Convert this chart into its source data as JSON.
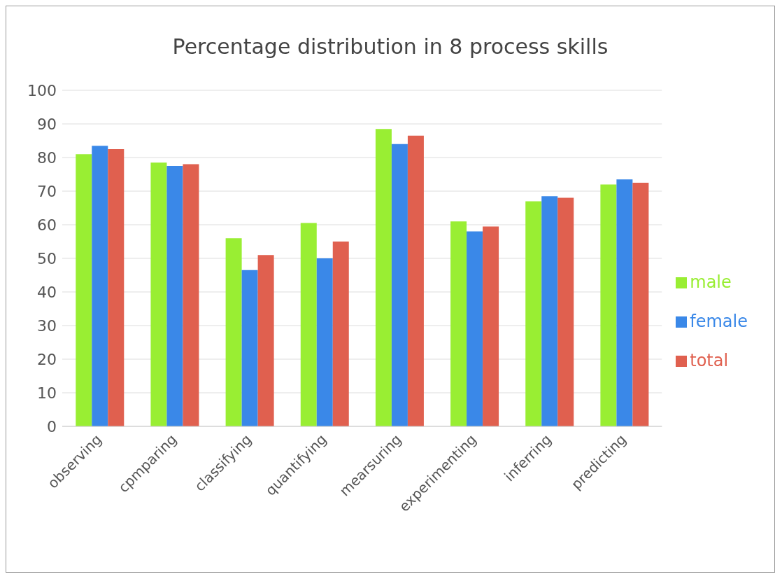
{
  "chart_data": {
    "type": "bar",
    "title": "Percentage distribution in 8 process skills",
    "categories": [
      "observing",
      "cpmparing",
      "classifying",
      "quantifying",
      "mearsuring",
      "experimenting",
      "inferring",
      "predicting"
    ],
    "series": [
      {
        "name": "male",
        "color": "#99ee33",
        "values": [
          81,
          78.5,
          56,
          60.5,
          88.5,
          61,
          67,
          72
        ]
      },
      {
        "name": "female",
        "color": "#3a88e8",
        "values": [
          83.5,
          77.5,
          46.5,
          50,
          84,
          58,
          68.5,
          73.5
        ]
      },
      {
        "name": "total",
        "color": "#e0604f",
        "values": [
          82.5,
          78,
          51,
          55,
          86.5,
          59.5,
          68,
          72.5
        ]
      }
    ],
    "ylim": [
      0,
      100
    ],
    "yticks": [
      0,
      10,
      20,
      30,
      40,
      50,
      60,
      70,
      80,
      90,
      100
    ],
    "grid": "y",
    "legend": "right"
  }
}
